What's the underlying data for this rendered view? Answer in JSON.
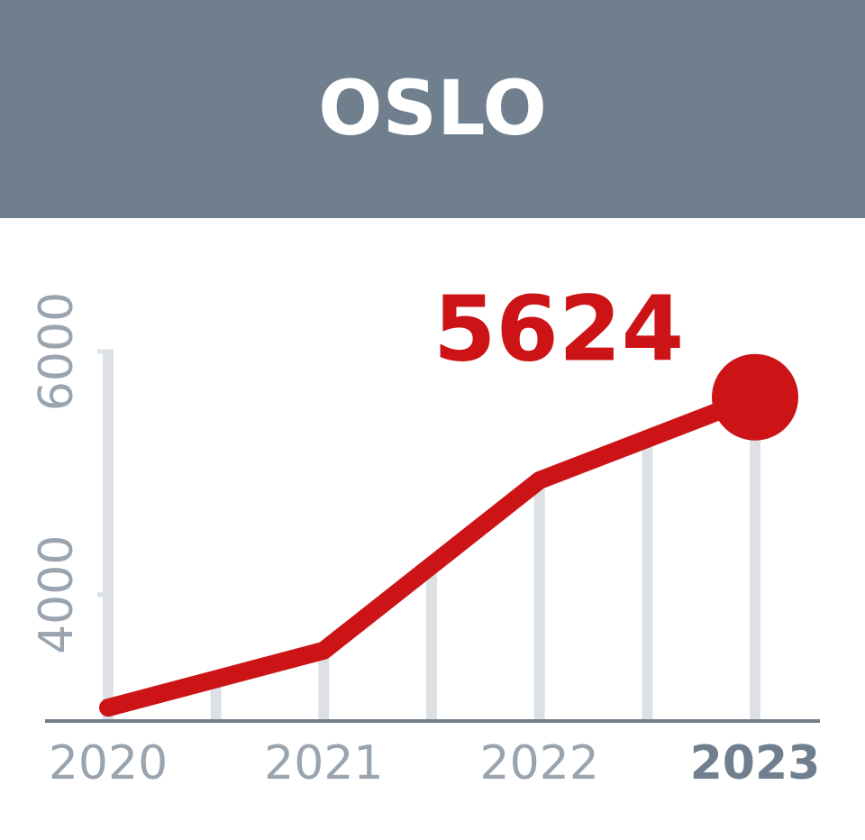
{
  "chart_data": {
    "type": "line",
    "title": "OSLO",
    "x": [
      2020,
      2021,
      2022,
      2023
    ],
    "values": [
      3070,
      3540,
      4940,
      5624
    ],
    "color": "#cc1417",
    "xlim": [
      2020,
      2023
    ],
    "xticks": [
      2020,
      2021,
      2022,
      2023
    ],
    "ylim": [
      2960,
      6000
    ],
    "yticks": [
      4000,
      6000
    ]
  }
}
